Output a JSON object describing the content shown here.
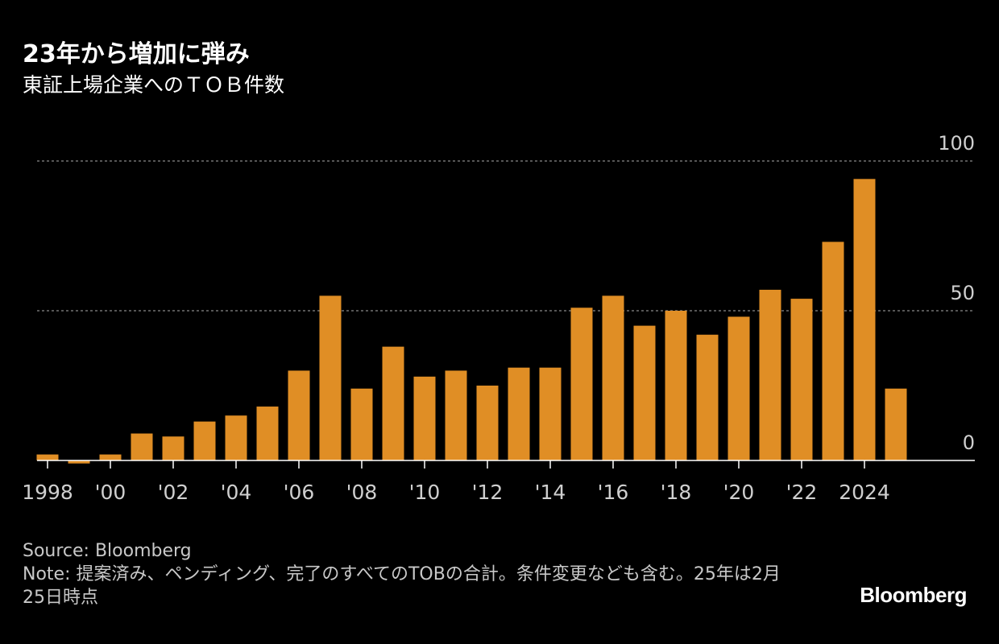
{
  "header": {
    "title": "23年から増加に弾み",
    "subtitle": "東証上場企業へのＴＯＢ件数"
  },
  "footer": {
    "source": "Source: Bloomberg",
    "note": "Note: 提案済み、ペンディング、完了のすべてのTOBの合計。条件変更なども含む。25年は2月25日時点",
    "brand": "Bloomberg"
  },
  "colors": {
    "bar": "#e08e25",
    "grid": "#8a8a8a",
    "axis": "#ffffff",
    "label": "#cfcfcf"
  },
  "chart_data": {
    "type": "bar",
    "title": "23年から増加に弾み",
    "subtitle": "東証上場企業へのＴＯＢ件数",
    "xlabel": "",
    "ylabel": "",
    "ylim": [
      0,
      100
    ],
    "y_ticks": [
      0,
      50,
      100
    ],
    "grid": true,
    "categories": [
      "1998",
      "1999",
      "2000",
      "2001",
      "2002",
      "2003",
      "2004",
      "2005",
      "2006",
      "2007",
      "2008",
      "2009",
      "2010",
      "2011",
      "2012",
      "2013",
      "2014",
      "2015",
      "2016",
      "2017",
      "2018",
      "2019",
      "2020",
      "2021",
      "2022",
      "2023",
      "2024",
      "2025"
    ],
    "values": [
      2,
      -1,
      2,
      9,
      8,
      13,
      15,
      18,
      30,
      55,
      24,
      38,
      28,
      30,
      25,
      31,
      31,
      51,
      55,
      45,
      50,
      42,
      48,
      57,
      54,
      73,
      94,
      24
    ],
    "x_ticks": [
      {
        "index": 0,
        "label": "1998"
      },
      {
        "index": 2,
        "label": "'00"
      },
      {
        "index": 4,
        "label": "'02"
      },
      {
        "index": 6,
        "label": "'04"
      },
      {
        "index": 8,
        "label": "'06"
      },
      {
        "index": 10,
        "label": "'08"
      },
      {
        "index": 12,
        "label": "'10"
      },
      {
        "index": 14,
        "label": "'12"
      },
      {
        "index": 16,
        "label": "'14"
      },
      {
        "index": 18,
        "label": "'16"
      },
      {
        "index": 20,
        "label": "'18"
      },
      {
        "index": 22,
        "label": "'20"
      },
      {
        "index": 24,
        "label": "'22"
      },
      {
        "index": 26,
        "label": "2024"
      }
    ]
  }
}
